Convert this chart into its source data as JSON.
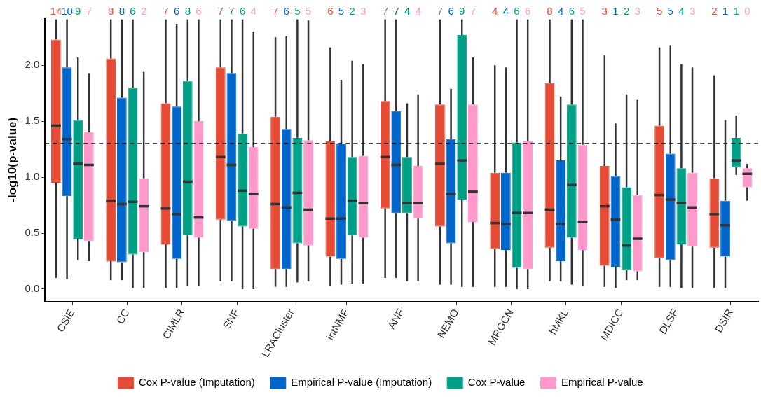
{
  "chart_data": {
    "type": "box",
    "ylabel": "-log10(p-value)",
    "categories": [
      "CSIE",
      "CC",
      "CIMLR",
      "SNF",
      "LRACluster",
      "intNMF",
      "ANF",
      "NEMO",
      "MRGCN",
      "hMKL",
      "MDICC",
      "DLSF",
      "DSIR"
    ],
    "ylim": [
      -0.11,
      2.42
    ],
    "yticks": [
      {
        "value": 0,
        "label": "0.0"
      },
      {
        "value": 0.5,
        "label": "0.5"
      },
      {
        "value": 1,
        "label": "1.0"
      },
      {
        "value": 1.5,
        "label": "1.5"
      },
      {
        "value": 2,
        "label": "2.0"
      }
    ],
    "grid": false,
    "legend": "bottom",
    "ref_lines": [
      {
        "axis": "y",
        "value": 1.3,
        "color": "#000000",
        "line_style": "dashed"
      }
    ],
    "series": [
      {
        "name": "Cox P-value (Imputation)",
        "color": "#e64b35",
        "value_labels": [
          "14",
          "8",
          "7",
          "7",
          "7",
          "6",
          "7",
          "7",
          "4",
          "8",
          "3",
          "5",
          "2"
        ],
        "boxes": [
          {
            "low": 0.1,
            "q1": 0.95,
            "median": 1.46,
            "q3": 2.23,
            "high": 2.41
          },
          {
            "low": 0.08,
            "q1": 0.25,
            "median": 0.79,
            "q3": 2.06,
            "high": 2.41
          },
          {
            "low": 0.01,
            "q1": 0.4,
            "median": 0.72,
            "q3": 1.66,
            "high": 2.41
          },
          {
            "low": 0.07,
            "q1": 0.62,
            "median": 1.18,
            "q3": 1.98,
            "high": 2.41
          },
          {
            "low": 0.02,
            "q1": 0.18,
            "median": 0.76,
            "q3": 1.54,
            "high": 2.25
          },
          {
            "low": 0.03,
            "q1": 0.29,
            "median": 0.63,
            "q3": 1.32,
            "high": 2.16
          },
          {
            "low": 0.1,
            "q1": 0.72,
            "median": 1.18,
            "q3": 1.68,
            "high": 2.41
          },
          {
            "low": 0.04,
            "q1": 0.56,
            "median": 1.12,
            "q3": 1.65,
            "high": 2.41
          },
          {
            "low": 0.02,
            "q1": 0.36,
            "median": 0.59,
            "q3": 1.04,
            "high": 2.0
          },
          {
            "low": 0.07,
            "q1": 0.37,
            "median": 0.71,
            "q3": 1.84,
            "high": 2.41
          },
          {
            "low": 0.02,
            "q1": 0.21,
            "median": 0.74,
            "q3": 1.1,
            "high": 2.09
          },
          {
            "low": 0.02,
            "q1": 0.28,
            "median": 0.84,
            "q3": 1.46,
            "high": 2.16
          },
          {
            "low": 0.01,
            "q1": 0.37,
            "median": 0.67,
            "q3": 0.99,
            "high": 1.91
          }
        ]
      },
      {
        "name": "Empirical P-value (Imputation)",
        "color": "#0066cc",
        "value_labels": [
          "10",
          "8",
          "6",
          "7",
          "6",
          "5",
          "7",
          "6",
          "4",
          "4",
          "1",
          "5",
          "1"
        ],
        "boxes": [
          {
            "low": 0.09,
            "q1": 0.83,
            "median": 1.34,
            "q3": 1.98,
            "high": 2.41
          },
          {
            "low": 0.08,
            "q1": 0.24,
            "median": 0.76,
            "q3": 1.71,
            "high": 2.41
          },
          {
            "low": 0.01,
            "q1": 0.27,
            "median": 0.67,
            "q3": 1.63,
            "high": 2.37
          },
          {
            "low": 0.07,
            "q1": 0.61,
            "median": 1.11,
            "q3": 1.93,
            "high": 2.41
          },
          {
            "low": 0.02,
            "q1": 0.18,
            "median": 0.73,
            "q3": 1.43,
            "high": 2.26
          },
          {
            "low": 0.04,
            "q1": 0.27,
            "median": 0.63,
            "q3": 1.3,
            "high": 1.87
          },
          {
            "low": 0.1,
            "q1": 0.68,
            "median": 1.11,
            "q3": 1.59,
            "high": 2.41
          },
          {
            "low": 0.04,
            "q1": 0.41,
            "median": 0.85,
            "q3": 1.34,
            "high": 1.79
          },
          {
            "low": 0.02,
            "q1": 0.35,
            "median": 0.58,
            "q3": 1.04,
            "high": 1.98
          },
          {
            "low": 0.07,
            "q1": 0.25,
            "median": 0.58,
            "q3": 1.15,
            "high": 1.72
          },
          {
            "low": 0.01,
            "q1": 0.2,
            "median": 0.62,
            "q3": 1.01,
            "high": 1.48
          },
          {
            "low": 0.02,
            "q1": 0.26,
            "median": 0.8,
            "q3": 1.21,
            "high": 2.18
          },
          {
            "low": 0.01,
            "q1": 0.29,
            "median": 0.57,
            "q3": 0.79,
            "high": 1.51
          }
        ]
      },
      {
        "name": "Cox P-value",
        "color": "#00a087",
        "value_labels": [
          "9",
          "6",
          "8",
          "6",
          "5",
          "2",
          "4",
          "9",
          "6",
          "6",
          "2",
          "4",
          "1"
        ],
        "boxes": [
          {
            "low": 0.26,
            "q1": 0.45,
            "median": 1.12,
            "q3": 1.51,
            "high": 2.07
          },
          {
            "low": 0.01,
            "q1": 0.31,
            "median": 0.78,
            "q3": 1.8,
            "high": 2.41
          },
          {
            "low": 0.03,
            "q1": 0.48,
            "median": 0.96,
            "q3": 1.86,
            "high": 2.41
          },
          {
            "low": 0.0,
            "q1": 0.56,
            "median": 0.88,
            "q3": 1.39,
            "high": 2.41
          },
          {
            "low": 0.06,
            "q1": 0.41,
            "median": 0.86,
            "q3": 1.35,
            "high": 2.41
          },
          {
            "low": 0.05,
            "q1": 0.48,
            "median": 0.79,
            "q3": 1.18,
            "high": 2.04
          },
          {
            "low": 0.07,
            "q1": 0.68,
            "median": 0.77,
            "q3": 1.18,
            "high": 1.66
          },
          {
            "low": 0.02,
            "q1": 0.8,
            "median": 1.15,
            "q3": 2.27,
            "high": 2.41
          },
          {
            "low": 0.0,
            "q1": 0.19,
            "median": 0.68,
            "q3": 1.31,
            "high": 2.41
          },
          {
            "low": 0.04,
            "q1": 0.46,
            "median": 0.93,
            "q3": 1.65,
            "high": 2.41
          },
          {
            "low": 0.08,
            "q1": 0.17,
            "median": 0.39,
            "q3": 0.91,
            "high": 1.74
          },
          {
            "low": 0.01,
            "q1": 0.4,
            "median": 0.77,
            "q3": 1.08,
            "high": 2.01
          },
          {
            "low": 1.02,
            "q1": 1.09,
            "median": 1.15,
            "q3": 1.35,
            "high": 1.55
          }
        ]
      },
      {
        "name": "Empirical P-value",
        "color": "#ff99cc",
        "value_labels": [
          "7",
          "2",
          "6",
          "4",
          "5",
          "3",
          "4",
          "7",
          "6",
          "5",
          "3",
          "3",
          "0"
        ],
        "boxes": [
          {
            "low": 0.25,
            "q1": 0.43,
            "median": 1.11,
            "q3": 1.4,
            "high": 1.93
          },
          {
            "low": 0.01,
            "q1": 0.33,
            "median": 0.74,
            "q3": 0.99,
            "high": 1.94
          },
          {
            "low": 0.03,
            "q1": 0.46,
            "median": 0.64,
            "q3": 1.5,
            "high": 2.41
          },
          {
            "low": 0.0,
            "q1": 0.54,
            "median": 0.85,
            "q3": 1.27,
            "high": 2.3
          },
          {
            "low": 0.07,
            "q1": 0.39,
            "median": 0.71,
            "q3": 1.33,
            "high": 2.4
          },
          {
            "low": 0.05,
            "q1": 0.46,
            "median": 0.77,
            "q3": 1.19,
            "high": 2.01
          },
          {
            "low": 0.07,
            "q1": 0.63,
            "median": 0.77,
            "q3": 1.1,
            "high": 1.74
          },
          {
            "low": 0.02,
            "q1": 0.6,
            "median": 0.87,
            "q3": 1.65,
            "high": 2.07
          },
          {
            "low": 0.0,
            "q1": 0.18,
            "median": 0.68,
            "q3": 1.32,
            "high": 2.41
          },
          {
            "low": 0.03,
            "q1": 0.35,
            "median": 0.6,
            "q3": 1.29,
            "high": 2.41
          },
          {
            "low": 0.08,
            "q1": 0.16,
            "median": 0.45,
            "q3": 0.84,
            "high": 1.69
          },
          {
            "low": 0.01,
            "q1": 0.38,
            "median": 0.73,
            "q3": 1.04,
            "high": 1.98
          },
          {
            "low": 0.79,
            "q1": 0.91,
            "median": 1.03,
            "q3": 1.08,
            "high": 1.12
          }
        ]
      }
    ]
  }
}
